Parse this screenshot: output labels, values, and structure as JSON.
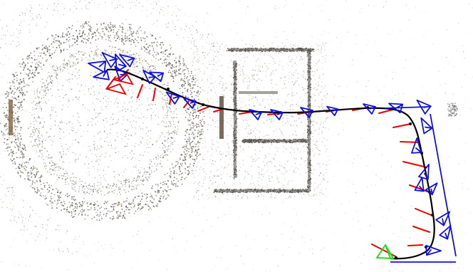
{
  "figure": {
    "kind": "sfm-reconstruction-top-view",
    "colors": {
      "background": "#ffffff",
      "point_gray": "#6f6a64",
      "point_dark": "#3e3a36",
      "point_tan": "#b08a5a",
      "trajectory": "#000000",
      "camera_frustum": "#1010e0",
      "start_camera": "#22dd22",
      "error_vector": "#ee0000"
    }
  }
}
